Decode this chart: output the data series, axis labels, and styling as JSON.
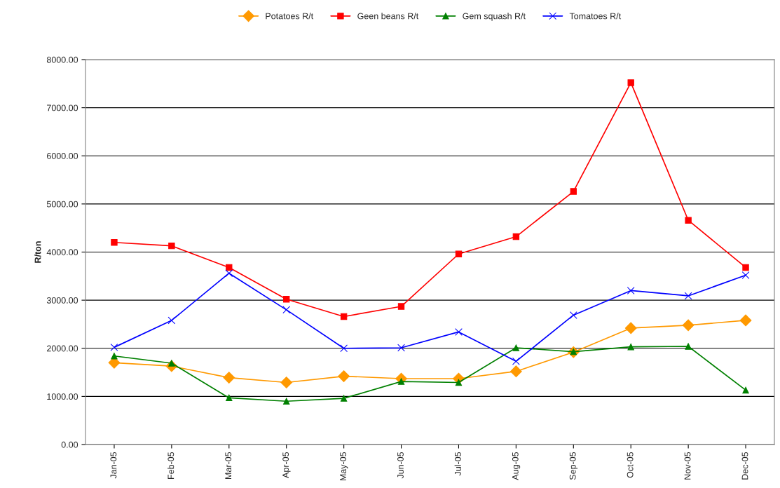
{
  "chart_data": {
    "type": "line",
    "ylabel": "R/ton",
    "categories": [
      "Jan-05",
      "Feb-05",
      "Mar-05",
      "Apr-05",
      "May-05",
      "Jun-05",
      "Jul-05",
      "Aug-05",
      "Sep-05",
      "Oct-05",
      "Nov-05",
      "Dec-05"
    ],
    "series": [
      {
        "name": "Potatoes R/t",
        "color": "#ff9900",
        "marker": "diamond",
        "values": [
          1700,
          1630,
          1390,
          1290,
          1420,
          1370,
          1370,
          1520,
          1920,
          2420,
          2480,
          2580
        ]
      },
      {
        "name": "Geen beans R/t",
        "color": "#ff0000",
        "marker": "square",
        "values": [
          4200,
          4130,
          3680,
          3020,
          2660,
          2870,
          3960,
          4320,
          5260,
          7520,
          4660,
          3680
        ]
      },
      {
        "name": "Gem squash R/t",
        "color": "#008000",
        "marker": "triangle",
        "values": [
          1840,
          1690,
          970,
          900,
          960,
          1310,
          1290,
          2010,
          1930,
          2030,
          2040,
          1130
        ]
      },
      {
        "name": "Tomatoes R/t",
        "color": "#0000ff",
        "marker": "cross",
        "values": [
          2020,
          2580,
          3560,
          2800,
          2000,
          2010,
          2340,
          1730,
          2690,
          3200,
          3090,
          3520
        ]
      }
    ],
    "ylim": [
      0,
      8000
    ],
    "yticks": [
      {
        "value": 0,
        "label": "0.00"
      },
      {
        "value": 1000,
        "label": "1000.00"
      },
      {
        "value": 2000,
        "label": "2000.00"
      },
      {
        "value": 3000,
        "label": "3000.00"
      },
      {
        "value": 4000,
        "label": "4000.00"
      },
      {
        "value": 5000,
        "label": "5000.00"
      },
      {
        "value": 6000,
        "label": "6000.00"
      },
      {
        "value": 7000,
        "label": "7000.00"
      },
      {
        "value": 8000,
        "label": "8000.00"
      }
    ],
    "grid": "y",
    "legend": "top"
  }
}
